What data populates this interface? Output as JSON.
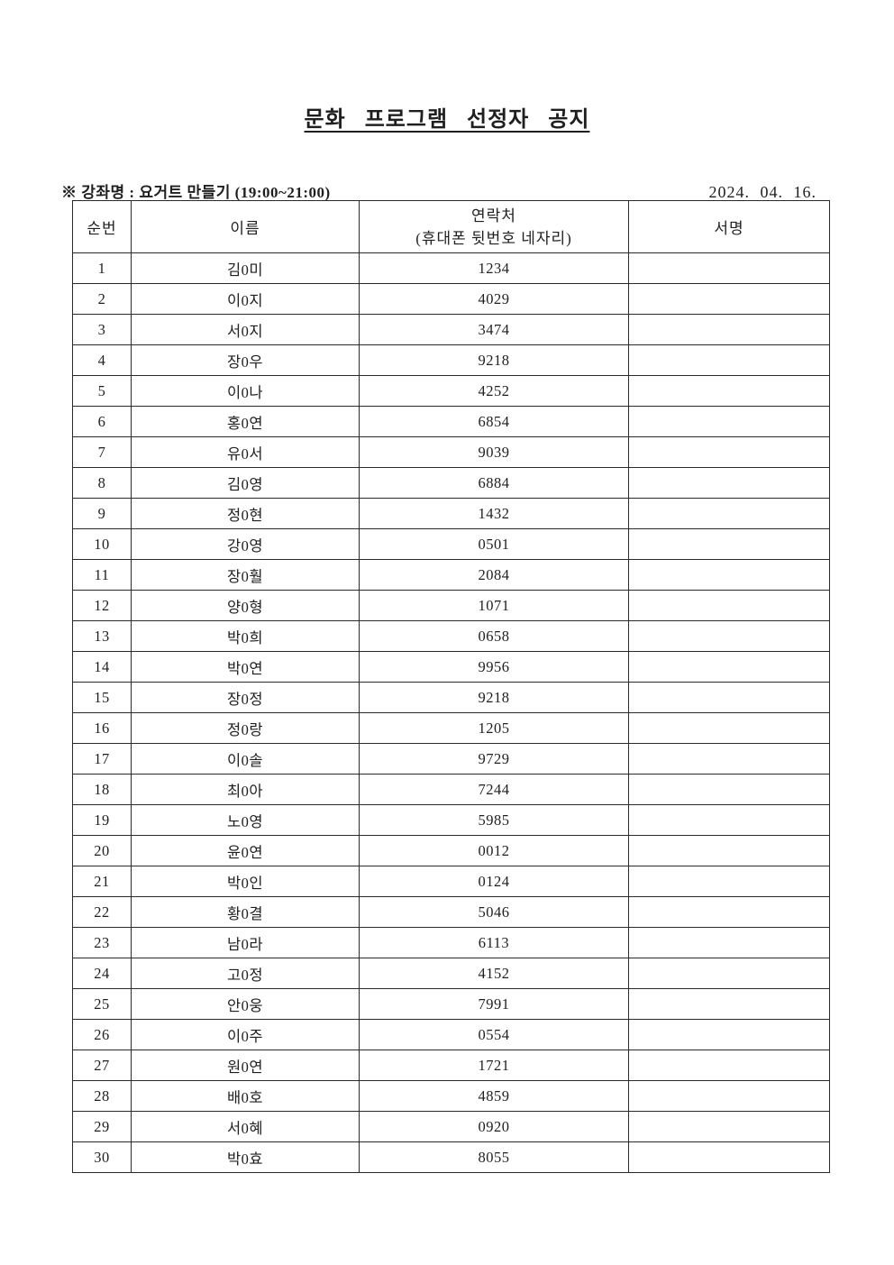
{
  "doc": {
    "title": "문화 프로그램 선정자 공지",
    "course_label": "※ 강좌명 : 요거트 만들기 (19:00~21:00)",
    "date": "2024. 04. 16."
  },
  "table": {
    "col_no": "순번",
    "col_name": "이름",
    "col_contact_line1": "연락처",
    "col_contact_line2": "(휴대폰 뒷번호 네자리)",
    "col_sign": "서명",
    "rows": [
      {
        "no": "1",
        "name": "김0미",
        "contact": "1234",
        "sign": ""
      },
      {
        "no": "2",
        "name": "이0지",
        "contact": "4029",
        "sign": ""
      },
      {
        "no": "3",
        "name": "서0지",
        "contact": "3474",
        "sign": ""
      },
      {
        "no": "4",
        "name": "장0우",
        "contact": "9218",
        "sign": ""
      },
      {
        "no": "5",
        "name": "이0나",
        "contact": "4252",
        "sign": ""
      },
      {
        "no": "6",
        "name": "홍0연",
        "contact": "6854",
        "sign": ""
      },
      {
        "no": "7",
        "name": "유0서",
        "contact": "9039",
        "sign": ""
      },
      {
        "no": "8",
        "name": "김0영",
        "contact": "6884",
        "sign": ""
      },
      {
        "no": "9",
        "name": "정0현",
        "contact": "1432",
        "sign": ""
      },
      {
        "no": "10",
        "name": "강0영",
        "contact": "0501",
        "sign": ""
      },
      {
        "no": "11",
        "name": "장0훨",
        "contact": "2084",
        "sign": ""
      },
      {
        "no": "12",
        "name": "양0형",
        "contact": "1071",
        "sign": ""
      },
      {
        "no": "13",
        "name": "박0희",
        "contact": "0658",
        "sign": ""
      },
      {
        "no": "14",
        "name": "박0연",
        "contact": "9956",
        "sign": ""
      },
      {
        "no": "15",
        "name": "장0정",
        "contact": "9218",
        "sign": ""
      },
      {
        "no": "16",
        "name": "정0랑",
        "contact": "1205",
        "sign": ""
      },
      {
        "no": "17",
        "name": "이0솔",
        "contact": "9729",
        "sign": ""
      },
      {
        "no": "18",
        "name": "최0아",
        "contact": "7244",
        "sign": ""
      },
      {
        "no": "19",
        "name": "노0영",
        "contact": "5985",
        "sign": ""
      },
      {
        "no": "20",
        "name": "윤0연",
        "contact": "0012",
        "sign": ""
      },
      {
        "no": "21",
        "name": "박0인",
        "contact": "0124",
        "sign": ""
      },
      {
        "no": "22",
        "name": "황0결",
        "contact": "5046",
        "sign": ""
      },
      {
        "no": "23",
        "name": "남0라",
        "contact": "6113",
        "sign": ""
      },
      {
        "no": "24",
        "name": "고0정",
        "contact": "4152",
        "sign": ""
      },
      {
        "no": "25",
        "name": "안0웅",
        "contact": "7991",
        "sign": ""
      },
      {
        "no": "26",
        "name": "이0주",
        "contact": "0554",
        "sign": ""
      },
      {
        "no": "27",
        "name": "원0연",
        "contact": "1721",
        "sign": ""
      },
      {
        "no": "28",
        "name": "배0호",
        "contact": "4859",
        "sign": ""
      },
      {
        "no": "29",
        "name": "서0혜",
        "contact": "0920",
        "sign": ""
      },
      {
        "no": "30",
        "name": "박0효",
        "contact": "8055",
        "sign": ""
      }
    ]
  }
}
